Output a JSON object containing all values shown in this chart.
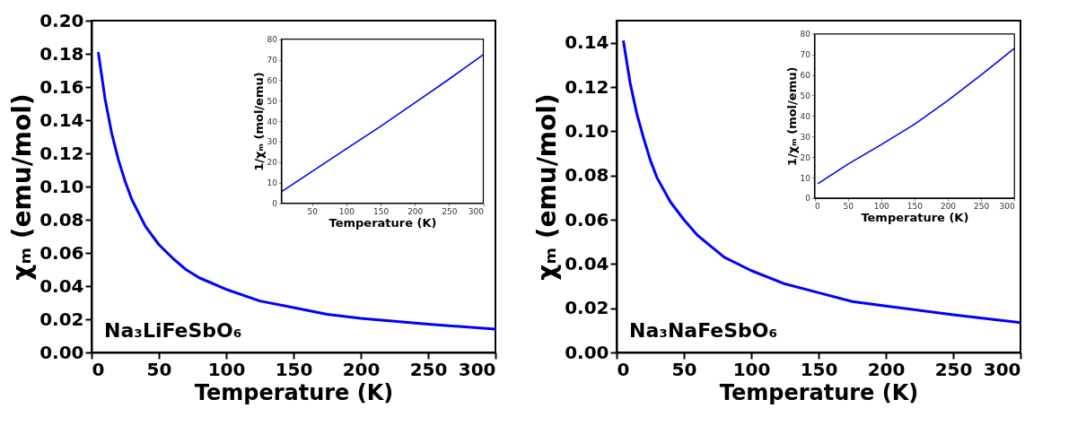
{
  "chart_data": [
    {
      "type": "line",
      "xlabel": "Temperature (K)",
      "ylabel": "χₘ (emu/mol)",
      "annotations": [
        "Na₃LiFeSbO₆"
      ],
      "xlim": [
        0,
        300
      ],
      "xticks": [
        0,
        50,
        100,
        150,
        200,
        250,
        300
      ],
      "ylim": [
        0,
        0.2
      ],
      "yticks": [
        {
          "value": 0,
          "label": "0.00"
        },
        {
          "value": 0.02,
          "label": "0.02"
        },
        {
          "value": 0.04,
          "label": "0.04"
        },
        {
          "value": 0.06,
          "label": "0.06"
        },
        {
          "value": 0.08,
          "label": "0.08"
        },
        {
          "value": 0.1,
          "label": "0.10"
        },
        {
          "value": 0.12,
          "label": "0.12"
        },
        {
          "value": 0.14,
          "label": "0.14"
        },
        {
          "value": 0.16,
          "label": "0.16"
        },
        {
          "value": 0.18,
          "label": "0.18"
        },
        {
          "value": 0.2,
          "label": "0.20"
        }
      ],
      "x": [
        5,
        10,
        15,
        20,
        25,
        30,
        40,
        50,
        60,
        70,
        80,
        100,
        125,
        150,
        175,
        200,
        250,
        300
      ],
      "series": [
        {
          "color": "#0000ff",
          "values": [
            0.181,
            0.153,
            0.132,
            0.116,
            0.103,
            0.092,
            0.076,
            0.065,
            0.057,
            0.05,
            0.045,
            0.038,
            0.031,
            0.027,
            0.023,
            0.0205,
            0.017,
            0.014
          ]
        }
      ]
    },
    {
      "type": "line",
      "xlabel": "Temperature (K)",
      "ylabel": "1/χₘ (mol/emu)",
      "xlim": [
        5,
        300
      ],
      "xticks": [
        50,
        100,
        150,
        200,
        250,
        300
      ],
      "ylim": [
        0,
        80
      ],
      "yticks": [
        0,
        10,
        20,
        30,
        40,
        50,
        60,
        70,
        80
      ],
      "x": [
        5,
        50,
        100,
        150,
        200,
        250,
        300
      ],
      "series": [
        {
          "color": "#0000ff",
          "values": [
            5.5,
            15.5,
            26.5,
            37.5,
            49,
            60.5,
            72.5
          ]
        }
      ]
    },
    {
      "type": "line",
      "xlabel": "Temperature (K)",
      "ylabel": "χₘ (emu/mol)",
      "annotations": [
        "Na₃NaFeSbO₆"
      ],
      "xlim": [
        0,
        300
      ],
      "xticks": [
        0,
        50,
        100,
        150,
        200,
        250,
        300
      ],
      "ylim": [
        0,
        0.15
      ],
      "yticks": [
        {
          "value": 0,
          "label": "0.00"
        },
        {
          "value": 0.02,
          "label": "0.02"
        },
        {
          "value": 0.04,
          "label": "0.04"
        },
        {
          "value": 0.06,
          "label": "0.06"
        },
        {
          "value": 0.08,
          "label": "0.08"
        },
        {
          "value": 0.1,
          "label": "0.10"
        },
        {
          "value": 0.12,
          "label": "0.12"
        },
        {
          "value": 0.14,
          "label": "0.14"
        }
      ],
      "x": [
        5,
        10,
        15,
        20,
        25,
        30,
        40,
        50,
        60,
        70,
        80,
        100,
        125,
        150,
        175,
        200,
        250,
        300
      ],
      "series": [
        {
          "color": "#0000ff",
          "values": [
            0.141,
            0.122,
            0.108,
            0.097,
            0.087,
            0.079,
            0.068,
            0.06,
            0.053,
            0.048,
            0.043,
            0.037,
            0.031,
            0.027,
            0.023,
            0.021,
            0.017,
            0.0135
          ]
        }
      ]
    },
    {
      "type": "line",
      "xlabel": "Temperature (K)",
      "ylabel": "1/χₘ (mol/emu)",
      "xlim": [
        0,
        300
      ],
      "xticks": [
        0,
        50,
        100,
        150,
        200,
        250,
        300
      ],
      "ylim": [
        0,
        80
      ],
      "yticks": [
        0,
        10,
        20,
        30,
        40,
        50,
        60,
        70,
        80
      ],
      "x": [
        5,
        50,
        100,
        150,
        200,
        250,
        300
      ],
      "series": [
        {
          "color": "#0000ff",
          "values": [
            7,
            16.5,
            26,
            36,
            47.5,
            60,
            73
          ]
        }
      ]
    }
  ]
}
